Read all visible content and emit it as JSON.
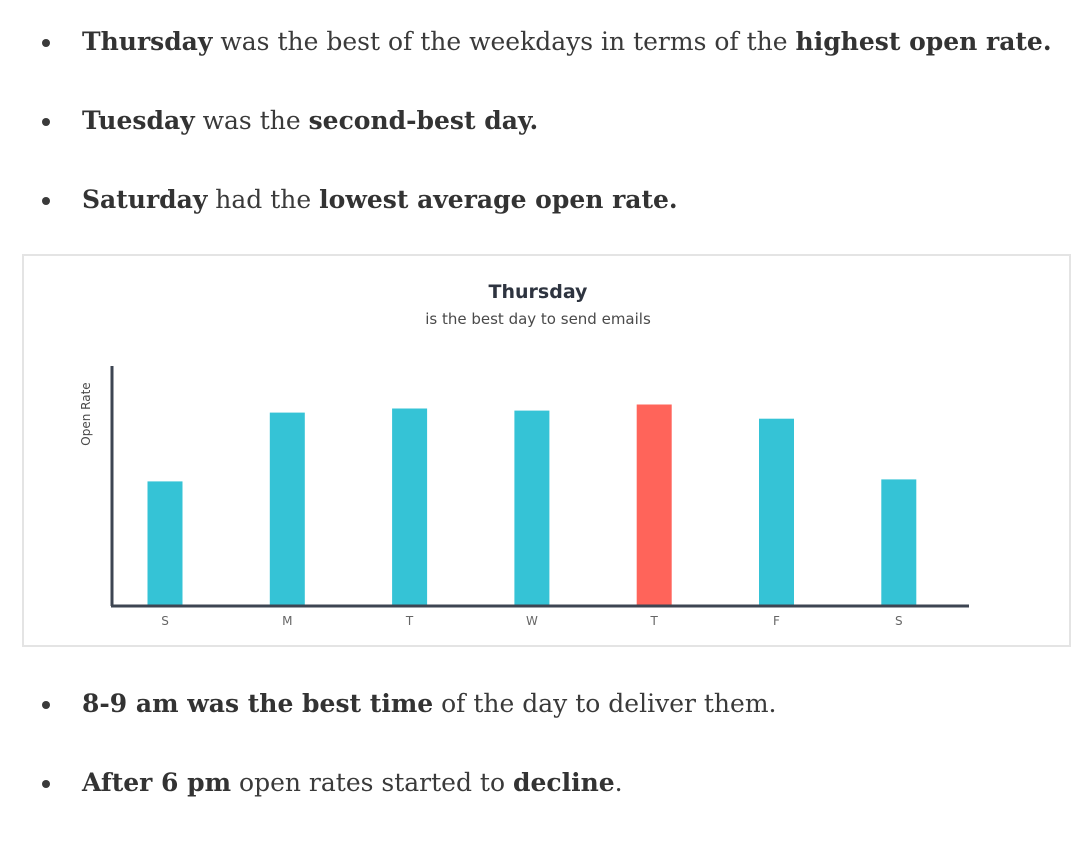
{
  "bullets_top": [
    {
      "parts": [
        {
          "t": "Thursday",
          "b": true
        },
        {
          "t": " was the best of the weekdays in terms of the ",
          "b": false
        },
        {
          "t": "highest open rate.",
          "b": true
        }
      ]
    },
    {
      "parts": [
        {
          "t": "Tuesday",
          "b": true
        },
        {
          "t": " was the ",
          "b": false
        },
        {
          "t": "second-best day.",
          "b": true
        }
      ]
    },
    {
      "parts": [
        {
          "t": "Saturday",
          "b": true
        },
        {
          "t": " had the ",
          "b": false
        },
        {
          "t": "lowest average open rate.",
          "b": true
        }
      ]
    }
  ],
  "bullets_bottom": [
    {
      "parts": [
        {
          "t": "8-9 am was the best time",
          "b": true
        },
        {
          "t": " of the day to deliver them.",
          "b": false
        }
      ]
    },
    {
      "parts": [
        {
          "t": "After 6 pm",
          "b": true
        },
        {
          "t": " open rates started to ",
          "b": false
        },
        {
          "t": "decline",
          "b": true
        },
        {
          "t": ".",
          "b": false
        }
      ]
    }
  ],
  "chart_data": {
    "type": "bar",
    "title": "Thursday",
    "subtitle": "is the best day to send emails",
    "ylabel": "Open Rate",
    "xlabel": "",
    "categories": [
      "S",
      "M",
      "T",
      "W",
      "T",
      "F",
      "S"
    ],
    "values": [
      61,
      95,
      97,
      96,
      99,
      92,
      62
    ],
    "highlight_index": 4,
    "ylim": [
      0,
      118
    ],
    "grid": false,
    "colors": {
      "bar": "#35c3d6",
      "highlight": "#ff645a",
      "axis": "#3d4552"
    }
  }
}
